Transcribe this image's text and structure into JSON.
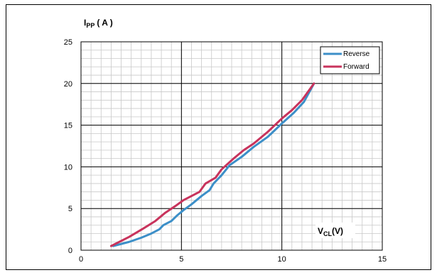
{
  "chart_data": {
    "type": "line",
    "y_axis_title": {
      "main": "I",
      "sub": "PP",
      "unit": "( A )"
    },
    "x_axis_title": {
      "main": "V",
      "sub": "CL",
      "unit": "(V)"
    },
    "xlim": [
      0,
      15
    ],
    "ylim": [
      0,
      25
    ],
    "x_major_ticks": [
      0,
      5,
      10,
      15
    ],
    "y_major_ticks": [
      0,
      5,
      10,
      15,
      20,
      25
    ],
    "x_minor_step": 0.5,
    "y_minor_step": 1,
    "grid": true,
    "legend_position": "top-right",
    "series": [
      {
        "name": "Reverse",
        "color": "#3c8fc8",
        "x": [
          1.6,
          2.4,
          3.0,
          3.5,
          3.9,
          4.1,
          4.5,
          4.8,
          5.1,
          5.5,
          6.0,
          6.4,
          6.6,
          7.0,
          7.4,
          8.0,
          8.6,
          9.3,
          10.0,
          10.6,
          11.1,
          11.6
        ],
        "y": [
          0.5,
          1.0,
          1.5,
          2.0,
          2.5,
          3.0,
          3.5,
          4.2,
          4.8,
          5.5,
          6.5,
          7.2,
          8.0,
          9.0,
          10.2,
          11.2,
          12.4,
          13.6,
          15.2,
          16.5,
          17.8,
          20.0
        ]
      },
      {
        "name": "Forward",
        "color": "#c8335c",
        "x": [
          1.5,
          2.4,
          3.1,
          3.7,
          4.2,
          4.7,
          5.1,
          5.5,
          5.9,
          6.2,
          6.7,
          7.0,
          7.6,
          8.1,
          8.6,
          9.3,
          10.0,
          10.5,
          11.0,
          11.6
        ],
        "y": [
          0.5,
          1.6,
          2.6,
          3.5,
          4.5,
          5.3,
          6.0,
          6.5,
          7.0,
          8.0,
          8.7,
          9.7,
          11.0,
          12.0,
          12.8,
          14.2,
          15.8,
          16.8,
          18.0,
          20.0
        ]
      }
    ]
  }
}
